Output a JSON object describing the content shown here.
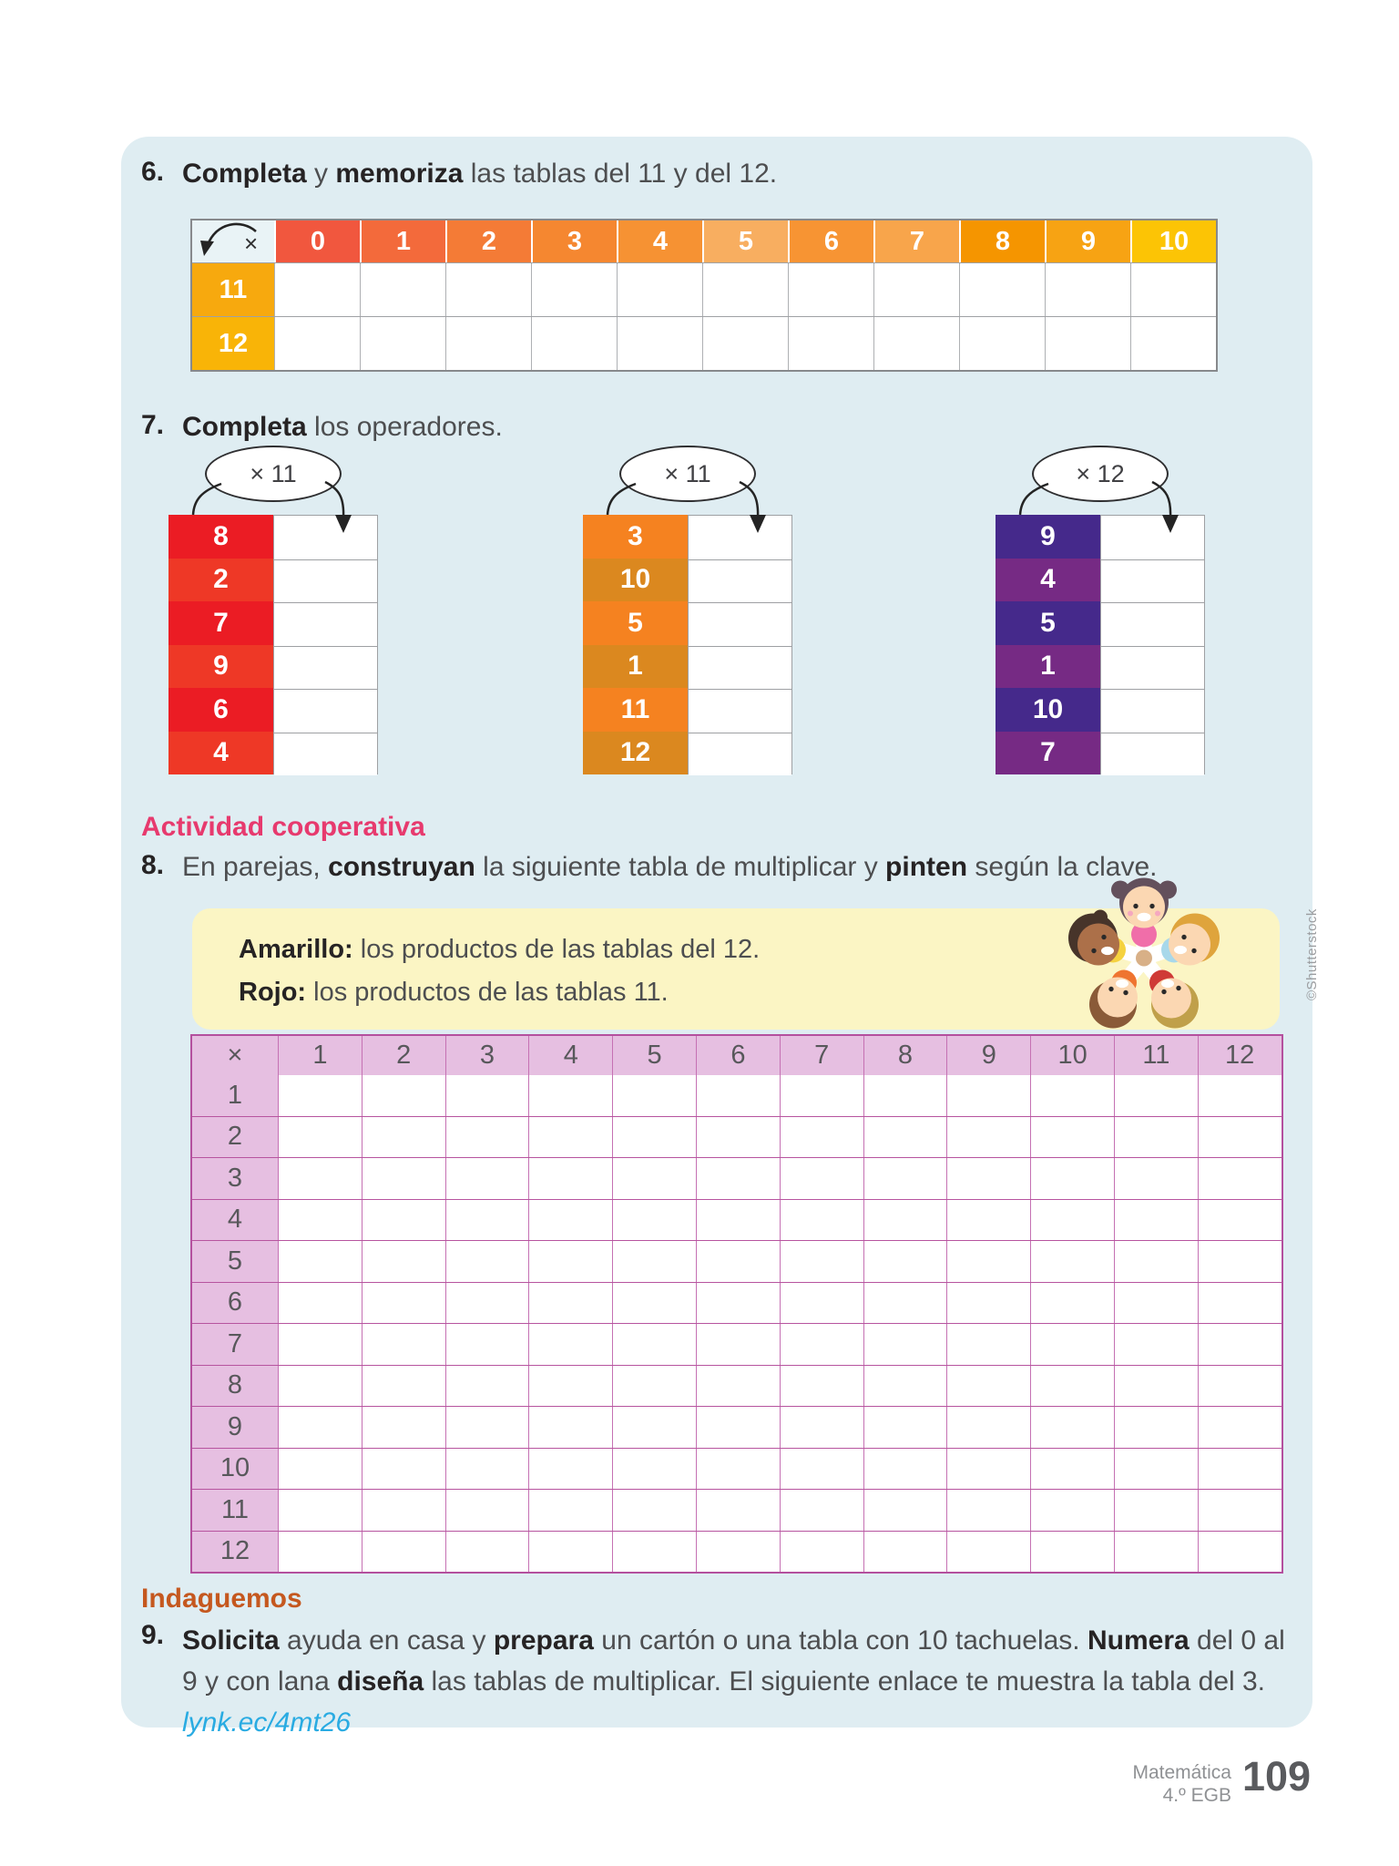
{
  "colors": {
    "panel_bg": "#dfedf2",
    "activity_heading": "#e73a6e",
    "indaguemos_heading": "#c5581f",
    "link_blue": "#29abe2",
    "legend_bg": "#fbf5c4",
    "pink_table_header": "#e6bfe1",
    "pink_table_border": "#b4509e"
  },
  "ex6": {
    "number": "6.",
    "title": [
      {
        "t": "Completa",
        "b": true
      },
      {
        "t": " y "
      },
      {
        "t": "memoriza",
        "b": true
      },
      {
        "t": " las tablas del 11 y del 12."
      }
    ],
    "table": {
      "corner_icon": "multiply-arrow-icon",
      "col_headers": [
        "0",
        "1",
        "2",
        "3",
        "4",
        "5",
        "6",
        "7",
        "8",
        "9",
        "10"
      ],
      "col_colors": [
        "#f1573e",
        "#f36a3b",
        "#f47b36",
        "#f58730",
        "#f69233",
        "#f8ae60",
        "#f79433",
        "#f8a54b",
        "#f59500",
        "#f7a313",
        "#fcc405"
      ],
      "row_headers": [
        "11",
        "12"
      ],
      "row_header_colors": [
        "#f7a90e",
        "#f9b407"
      ]
    }
  },
  "ex7": {
    "number": "7.",
    "title": [
      {
        "t": "Completa",
        "b": true
      },
      {
        "t": " los operadores."
      }
    ],
    "groups": [
      {
        "operator": "× 11",
        "values": [
          "8",
          "2",
          "7",
          "9",
          "6",
          "4"
        ],
        "cell_colors": [
          "#eb1c24",
          "#ee3826"
        ]
      },
      {
        "operator": "× 11",
        "values": [
          "3",
          "10",
          "5",
          "1",
          "11",
          "12"
        ],
        "cell_colors": [
          "#f58220",
          "#db881f"
        ]
      },
      {
        "operator": "× 12",
        "values": [
          "9",
          "4",
          "5",
          "1",
          "10",
          "7"
        ],
        "cell_colors": [
          "#45298b",
          "#762a84"
        ]
      }
    ]
  },
  "activity": {
    "heading": "Actividad cooperativa",
    "number": "8.",
    "instruction": [
      {
        "t": "En parejas, "
      },
      {
        "t": "construyan",
        "b": true
      },
      {
        "t": " la siguiente tabla de multiplicar y "
      },
      {
        "t": "pinten",
        "b": true
      },
      {
        "t": " según la clave."
      }
    ],
    "legend_lines": [
      [
        {
          "t": "Amarillo:",
          "b": true
        },
        {
          "t": " los productos de las tablas del 12."
        }
      ],
      [
        {
          "t": "Rojo:",
          "b": true
        },
        {
          "t": " los productos de las tablas 11."
        }
      ]
    ],
    "credit": "©Shutterstock",
    "table": {
      "corner": "×",
      "col_headers": [
        "1",
        "2",
        "3",
        "4",
        "5",
        "6",
        "7",
        "8",
        "9",
        "10",
        "11",
        "12"
      ],
      "row_headers": [
        "1",
        "2",
        "3",
        "4",
        "5",
        "6",
        "7",
        "8",
        "9",
        "10",
        "11",
        "12"
      ]
    }
  },
  "ex9": {
    "heading": "Indaguemos",
    "number": "9.",
    "lines": [
      [
        {
          "t": "Solicita",
          "b": true
        },
        {
          "t": " ayuda en casa y "
        },
        {
          "t": "prepara",
          "b": true
        },
        {
          "t": " un cartón o una tabla con 10 tachuelas. "
        },
        {
          "t": "Numera",
          "b": true
        },
        {
          "t": " del 0 al"
        }
      ],
      [
        {
          "t": "9 y con lana "
        },
        {
          "t": "diseña",
          "b": true
        },
        {
          "t": " las tablas de multiplicar. El siguiente enlace te muestra la tabla del 3."
        }
      ]
    ],
    "link": "lynk.ec/4mt26"
  },
  "footer": {
    "subject": "Matemática",
    "grade": "4.º EGB",
    "page": "109"
  }
}
